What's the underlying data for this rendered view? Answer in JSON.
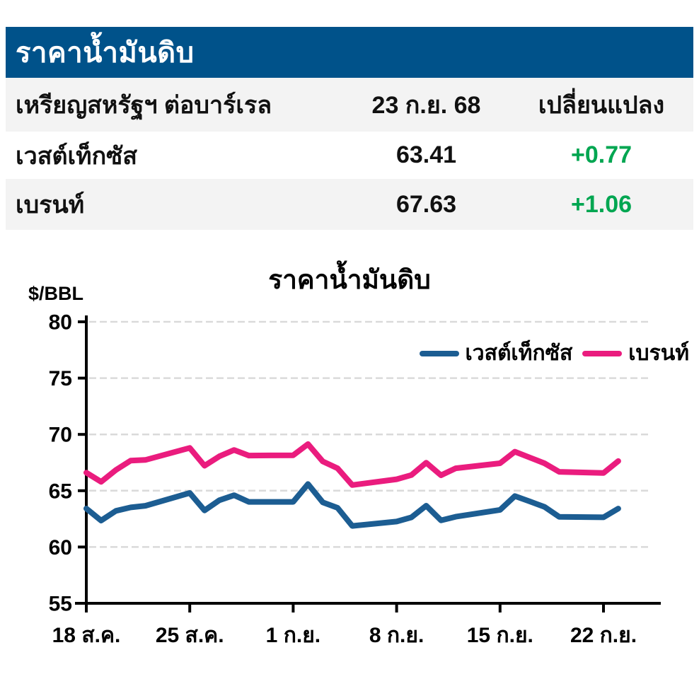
{
  "colors": {
    "header_blue": "#00528a",
    "row_gray": "#f3f3f3",
    "green": "#00a651",
    "wti_blue": "#1c5d92",
    "brent_pink": "#ea1c7e",
    "grid_gray": "#dadada",
    "text_black": "#111111"
  },
  "table": {
    "title": "ราคาน้ำมันดิบ",
    "header": {
      "col1": "เหรียญสหรัฐฯ ต่อบาร์เรล",
      "col2": "23 ก.ย. 68",
      "col3": "เปลี่ยนแปลง"
    },
    "rows": [
      {
        "name": "เวสต์เท็กซัส",
        "price": "63.41",
        "change": "+0.77"
      },
      {
        "name": "เบรนท์",
        "price": "67.63",
        "change": "+1.06"
      }
    ]
  },
  "chart": {
    "title": "ราคาน้ำมันดิบ",
    "y_axis_label": "$/BBL",
    "legend": [
      {
        "label": "เวสต์เท็กซัส",
        "color": "#1c5d92"
      },
      {
        "label": "เบรนท์",
        "color": "#ea1c7e"
      }
    ]
  },
  "chart_data": {
    "type": "line",
    "title": "ราคาน้ำมันดิบ",
    "ylabel": "$/BBL",
    "ylim": [
      55,
      80
    ],
    "yticks": [
      55,
      60,
      65,
      70,
      75,
      80
    ],
    "grid": true,
    "legend_position": "top-right",
    "x_unit": "days from 18 Aug (weekday closes, weekends interpolated)",
    "x_day_offsets": [
      0,
      1,
      2,
      3,
      4,
      7,
      8,
      9,
      10,
      11,
      14,
      15,
      16,
      17,
      18,
      21,
      22,
      23,
      24,
      25,
      28,
      29,
      30,
      31,
      32,
      35,
      36
    ],
    "x_tick_days": [
      0,
      7,
      14,
      21,
      28,
      35
    ],
    "x_tick_labels": [
      "18 ส.ค.",
      "25 ส.ค.",
      "1 ก.ย.",
      "8 ก.ย.",
      "15 ก.ย.",
      "22 ก.ย."
    ],
    "series": [
      {
        "name": "เวสต์เท็กซัส",
        "color": "#1c5d92",
        "values": [
          63.42,
          62.35,
          63.21,
          63.52,
          63.66,
          64.8,
          63.25,
          64.15,
          64.6,
          64.01,
          64.01,
          65.59,
          63.97,
          63.48,
          61.87,
          62.26,
          62.63,
          63.67,
          62.37,
          62.69,
          63.3,
          64.52,
          64.05,
          63.57,
          62.68,
          62.64,
          63.41
        ]
      },
      {
        "name": "เบรนท์",
        "color": "#ea1c7e",
        "values": [
          66.6,
          65.79,
          66.84,
          67.67,
          67.73,
          68.8,
          67.22,
          68.05,
          68.62,
          68.12,
          68.15,
          69.14,
          67.6,
          66.99,
          65.5,
          66.02,
          66.39,
          67.49,
          66.37,
          66.99,
          67.44,
          68.47,
          67.95,
          67.44,
          66.68,
          66.57,
          67.63
        ]
      }
    ]
  }
}
